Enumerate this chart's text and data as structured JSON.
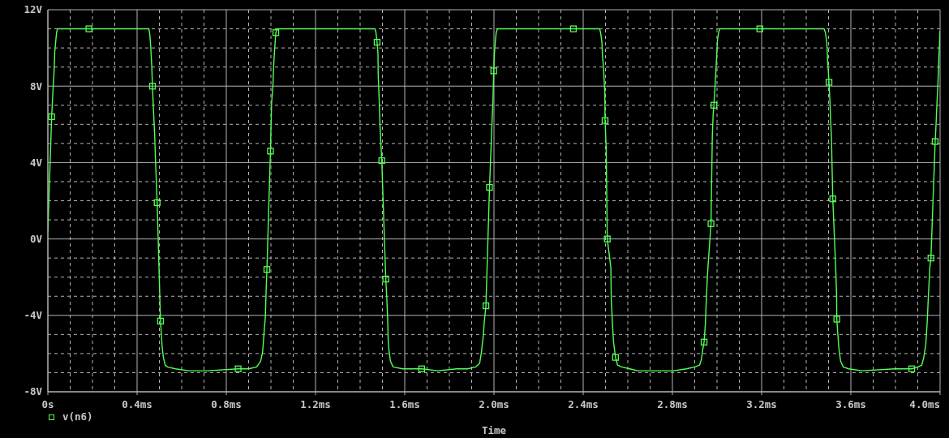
{
  "chart_data": {
    "type": "line",
    "xlabel": "Time",
    "grid": true,
    "legend": "bottom left",
    "xlim": [
      0,
      4
    ],
    "xticks": [
      {
        "value": 0,
        "label": "0s"
      },
      {
        "value": 0.1,
        "label": null
      },
      {
        "value": 0.2,
        "label": null
      },
      {
        "value": 0.3,
        "label": null
      },
      {
        "value": 0.4,
        "label": "0.4ms"
      },
      {
        "value": 0.5,
        "label": null
      },
      {
        "value": 0.6,
        "label": null
      },
      {
        "value": 0.7,
        "label": null
      },
      {
        "value": 0.8,
        "label": "0.8ms"
      },
      {
        "value": 0.9,
        "label": null
      },
      {
        "value": 1.0,
        "label": null
      },
      {
        "value": 1.1,
        "label": null
      },
      {
        "value": 1.2,
        "label": "1.2ms"
      },
      {
        "value": 1.3,
        "label": null
      },
      {
        "value": 1.4,
        "label": null
      },
      {
        "value": 1.5,
        "label": null
      },
      {
        "value": 1.6,
        "label": "1.6ms"
      },
      {
        "value": 1.7,
        "label": null
      },
      {
        "value": 1.8,
        "label": null
      },
      {
        "value": 1.9,
        "label": null
      },
      {
        "value": 2.0,
        "label": "2.0ms"
      },
      {
        "value": 2.1,
        "label": null
      },
      {
        "value": 2.2,
        "label": null
      },
      {
        "value": 2.3,
        "label": null
      },
      {
        "value": 2.4,
        "label": "2.4ms"
      },
      {
        "value": 2.5,
        "label": null
      },
      {
        "value": 2.6,
        "label": null
      },
      {
        "value": 2.7,
        "label": null
      },
      {
        "value": 2.8,
        "label": "2.8ms"
      },
      {
        "value": 2.9,
        "label": null
      },
      {
        "value": 3.0,
        "label": null
      },
      {
        "value": 3.1,
        "label": null
      },
      {
        "value": 3.2,
        "label": "3.2ms"
      },
      {
        "value": 3.3,
        "label": null
      },
      {
        "value": 3.4,
        "label": null
      },
      {
        "value": 3.5,
        "label": null
      },
      {
        "value": 3.6,
        "label": "3.6ms"
      },
      {
        "value": 3.7,
        "label": null
      },
      {
        "value": 3.8,
        "label": null
      },
      {
        "value": 3.9,
        "label": null
      },
      {
        "value": 4.0,
        "label": "4.0ms"
      }
    ],
    "ylim": [
      -8,
      12
    ],
    "yticks": [
      {
        "value": -8,
        "label": "-8V"
      },
      {
        "value": -7,
        "label": null
      },
      {
        "value": -6,
        "label": null
      },
      {
        "value": -5,
        "label": null
      },
      {
        "value": -4,
        "label": "-4V"
      },
      {
        "value": -3,
        "label": null
      },
      {
        "value": -2,
        "label": null
      },
      {
        "value": -1,
        "label": null
      },
      {
        "value": 0,
        "label": "0V"
      },
      {
        "value": 1,
        "label": null
      },
      {
        "value": 2,
        "label": null
      },
      {
        "value": 3,
        "label": null
      },
      {
        "value": 4,
        "label": "4V"
      },
      {
        "value": 5,
        "label": null
      },
      {
        "value": 6,
        "label": null
      },
      {
        "value": 7,
        "label": null
      },
      {
        "value": 8,
        "label": "8V"
      },
      {
        "value": 9,
        "label": null
      },
      {
        "value": 10,
        "label": null
      },
      {
        "value": 11,
        "label": null
      },
      {
        "value": 12,
        "label": "12V"
      }
    ],
    "series": [
      {
        "color": "#55ff55",
        "x": [
          0,
          0.017,
          0.024,
          0.028,
          0.031,
          0.035,
          0.039,
          0.043,
          0.184,
          0.453,
          0.457,
          0.461,
          0.466,
          0.469,
          0.474,
          0.479,
          0.482,
          0.49,
          0.505,
          0.512,
          0.518,
          0.526,
          0.536,
          0.572,
          0.632,
          0.716,
          0.853,
          0.9,
          0.936,
          0.954,
          0.963,
          0.97,
          0.975,
          0.978,
          0.982,
          0.998,
          1.003,
          1.009,
          1.012,
          1.016,
          1.022,
          1.027,
          1.467,
          1.471,
          1.476,
          1.48,
          1.481,
          1.485,
          1.488,
          1.492,
          1.497,
          1.515,
          1.52,
          1.524,
          1.526,
          1.53,
          1.536,
          1.548,
          1.591,
          1.676,
          1.748,
          1.833,
          1.882,
          1.918,
          1.936,
          1.944,
          1.952,
          1.956,
          1.964,
          1.98,
          1.987,
          1.991,
          1.995,
          1.999,
          2.002,
          2.006,
          2.01,
          2.016,
          2.356,
          2.474,
          2.478,
          2.484,
          2.487,
          2.491,
          2.494,
          2.497,
          2.498,
          2.503,
          2.508,
          2.524,
          2.526,
          2.531,
          2.536,
          2.545,
          2.554,
          2.572,
          2.609,
          2.645,
          2.803,
          2.863,
          2.9,
          2.922,
          2.93,
          2.936,
          2.942,
          2.948,
          2.952,
          2.957,
          2.973,
          2.979,
          2.983,
          2.986,
          2.991,
          2.995,
          2.999,
          3.002,
          3.007,
          3.012,
          3.192,
          3.48,
          3.486,
          3.492,
          3.496,
          3.5,
          3.502,
          3.506,
          3.509,
          3.513,
          3.515,
          3.519,
          3.532,
          3.536,
          3.537,
          3.541,
          3.547,
          3.554,
          3.566,
          3.59,
          3.651,
          3.796,
          3.873,
          3.9,
          3.918,
          3.927,
          3.936,
          3.942,
          3.948,
          3.954,
          3.959,
          3.978,
          3.982,
          3.986,
          3.991,
          3.995,
          3.998,
          4.0
        ],
        "values": [
          0.4,
          6.4,
          8.0,
          8.8,
          9.8,
          10.3,
          10.8,
          11.0,
          11.0,
          11.0,
          10.7,
          10.1,
          9.0,
          8.0,
          6.6,
          5.4,
          4.3,
          1.9,
          -4.3,
          -5.6,
          -6.2,
          -6.6,
          -6.7,
          -6.8,
          -6.9,
          -6.9,
          -6.8,
          -6.8,
          -6.7,
          -6.4,
          -5.9,
          -4.8,
          -4.1,
          -2.9,
          -1.6,
          4.6,
          7.1,
          8.0,
          9.0,
          9.8,
          10.8,
          11.0,
          11.0,
          10.8,
          10.3,
          9.7,
          8.6,
          7.4,
          6.3,
          5.2,
          4.1,
          -2.1,
          -3.2,
          -4.4,
          -5.4,
          -5.9,
          -6.4,
          -6.7,
          -6.8,
          -6.8,
          -6.9,
          -6.8,
          -6.8,
          -6.7,
          -6.5,
          -5.9,
          -5.1,
          -4.4,
          -3.5,
          2.7,
          4.8,
          6.0,
          7.1,
          8.8,
          9.7,
          10.3,
          10.8,
          11.0,
          11.0,
          11.0,
          10.8,
          10.3,
          9.5,
          9.0,
          8.3,
          7.7,
          6.2,
          4.8,
          0.0,
          -1.5,
          -3.2,
          -4.4,
          -5.4,
          -6.2,
          -6.6,
          -6.7,
          -6.8,
          -6.9,
          -6.9,
          -6.8,
          -6.7,
          -6.6,
          -6.3,
          -5.8,
          -5.4,
          -4.4,
          -3.2,
          -1.9,
          0.8,
          5.4,
          6.6,
          7.0,
          8.0,
          8.8,
          9.7,
          10.4,
          10.8,
          11.0,
          11.0,
          11.0,
          10.8,
          10.3,
          9.3,
          8.6,
          8.2,
          7.3,
          6.3,
          5.3,
          4.2,
          2.1,
          -1.5,
          -2.9,
          -4.2,
          -4.9,
          -5.8,
          -6.4,
          -6.7,
          -6.8,
          -6.9,
          -6.8,
          -6.8,
          -6.7,
          -6.6,
          -6.2,
          -5.5,
          -4.4,
          -2.9,
          -1.5,
          -1.0,
          5.1,
          6.0,
          7.1,
          8.3,
          9.7,
          10.4,
          10.9
        ]
      },
      {
        "name": "v(n6)",
        "type": "scatter",
        "marker": "square",
        "color": "#55ff55",
        "x": [
          0.017,
          0.184,
          0.469,
          0.49,
          0.505,
          0.853,
          0.982,
          0.998,
          1.022,
          1.476,
          1.497,
          1.515,
          1.676,
          1.964,
          1.98,
          1.999,
          2.356,
          2.498,
          2.508,
          2.545,
          2.942,
          2.973,
          2.986,
          3.192,
          3.502,
          3.519,
          3.537,
          3.873,
          3.959,
          3.978
        ],
        "values": [
          6.4,
          11.0,
          8.0,
          1.9,
          -4.3,
          -6.8,
          -1.6,
          4.6,
          10.8,
          10.3,
          4.1,
          -2.1,
          -6.8,
          -3.5,
          2.7,
          8.8,
          11.0,
          6.2,
          0.0,
          -6.2,
          -5.4,
          0.8,
          7.0,
          11.0,
          8.2,
          2.1,
          -4.2,
          -6.8,
          -1.0,
          5.1
        ]
      }
    ]
  }
}
